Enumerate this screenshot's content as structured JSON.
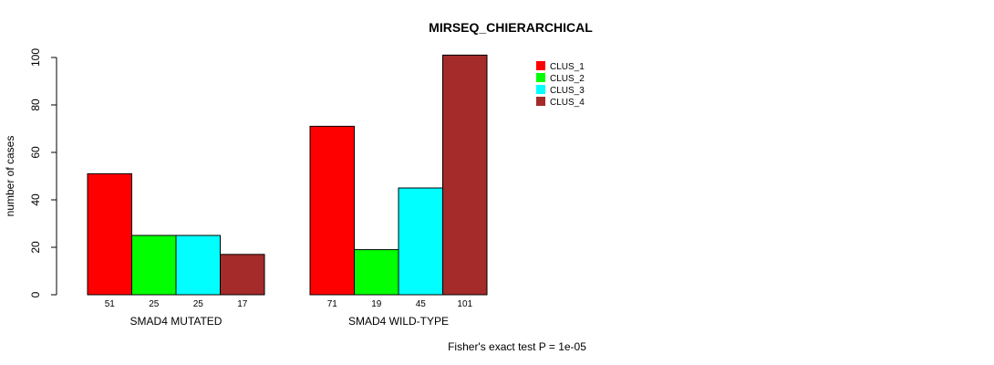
{
  "chart_data": {
    "type": "bar",
    "title": "MIRSEQ_CHIERARCHICAL",
    "xlabel": "",
    "ylabel": "number of cases",
    "ylim": [
      0,
      100
    ],
    "yticks": [
      0,
      20,
      40,
      60,
      80,
      100
    ],
    "categories": [
      "SMAD4 MUTATED",
      "SMAD4 WILD-TYPE"
    ],
    "series": [
      {
        "name": "CLUS_1",
        "color": "#ff0000",
        "values": [
          51,
          71
        ]
      },
      {
        "name": "CLUS_2",
        "color": "#00ff00",
        "values": [
          25,
          19
        ]
      },
      {
        "name": "CLUS_3",
        "color": "#00ffff",
        "values": [
          25,
          45
        ]
      },
      {
        "name": "CLUS_4",
        "color": "#a52a2a",
        "values": [
          17,
          101
        ]
      }
    ],
    "legend_position": "top-right",
    "footnote": "Fisher's exact test P = 1e-05"
  }
}
